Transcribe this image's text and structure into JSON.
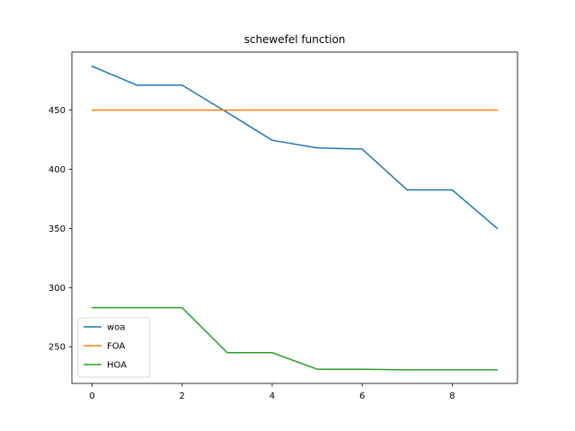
{
  "chart_data": {
    "type": "line",
    "title": "schewefel function",
    "xlabel": "",
    "ylabel": "",
    "x": [
      0,
      1,
      2,
      3,
      4,
      5,
      6,
      7,
      8,
      9
    ],
    "series": [
      {
        "name": "woa",
        "color": "#1f77b4",
        "values": [
          487,
          471,
          471,
          448,
          424.5,
          418,
          417,
          382.5,
          382.5,
          350
        ]
      },
      {
        "name": "FOA",
        "color": "#ff7f0e",
        "values": [
          450,
          450,
          450,
          450,
          450,
          450,
          450,
          450,
          450,
          450
        ]
      },
      {
        "name": "HOA",
        "color": "#2ca02c",
        "values": [
          283,
          283,
          283,
          245,
          245,
          231,
          231,
          230.5,
          230.5,
          230.5
        ]
      }
    ],
    "xlim": [
      -0.45,
      9.45
    ],
    "ylim": [
      219,
      499
    ],
    "xticks": [
      0,
      2,
      4,
      6,
      8
    ],
    "yticks": [
      250,
      300,
      350,
      400,
      450
    ],
    "grid": false,
    "legend_position": "lower-left"
  }
}
